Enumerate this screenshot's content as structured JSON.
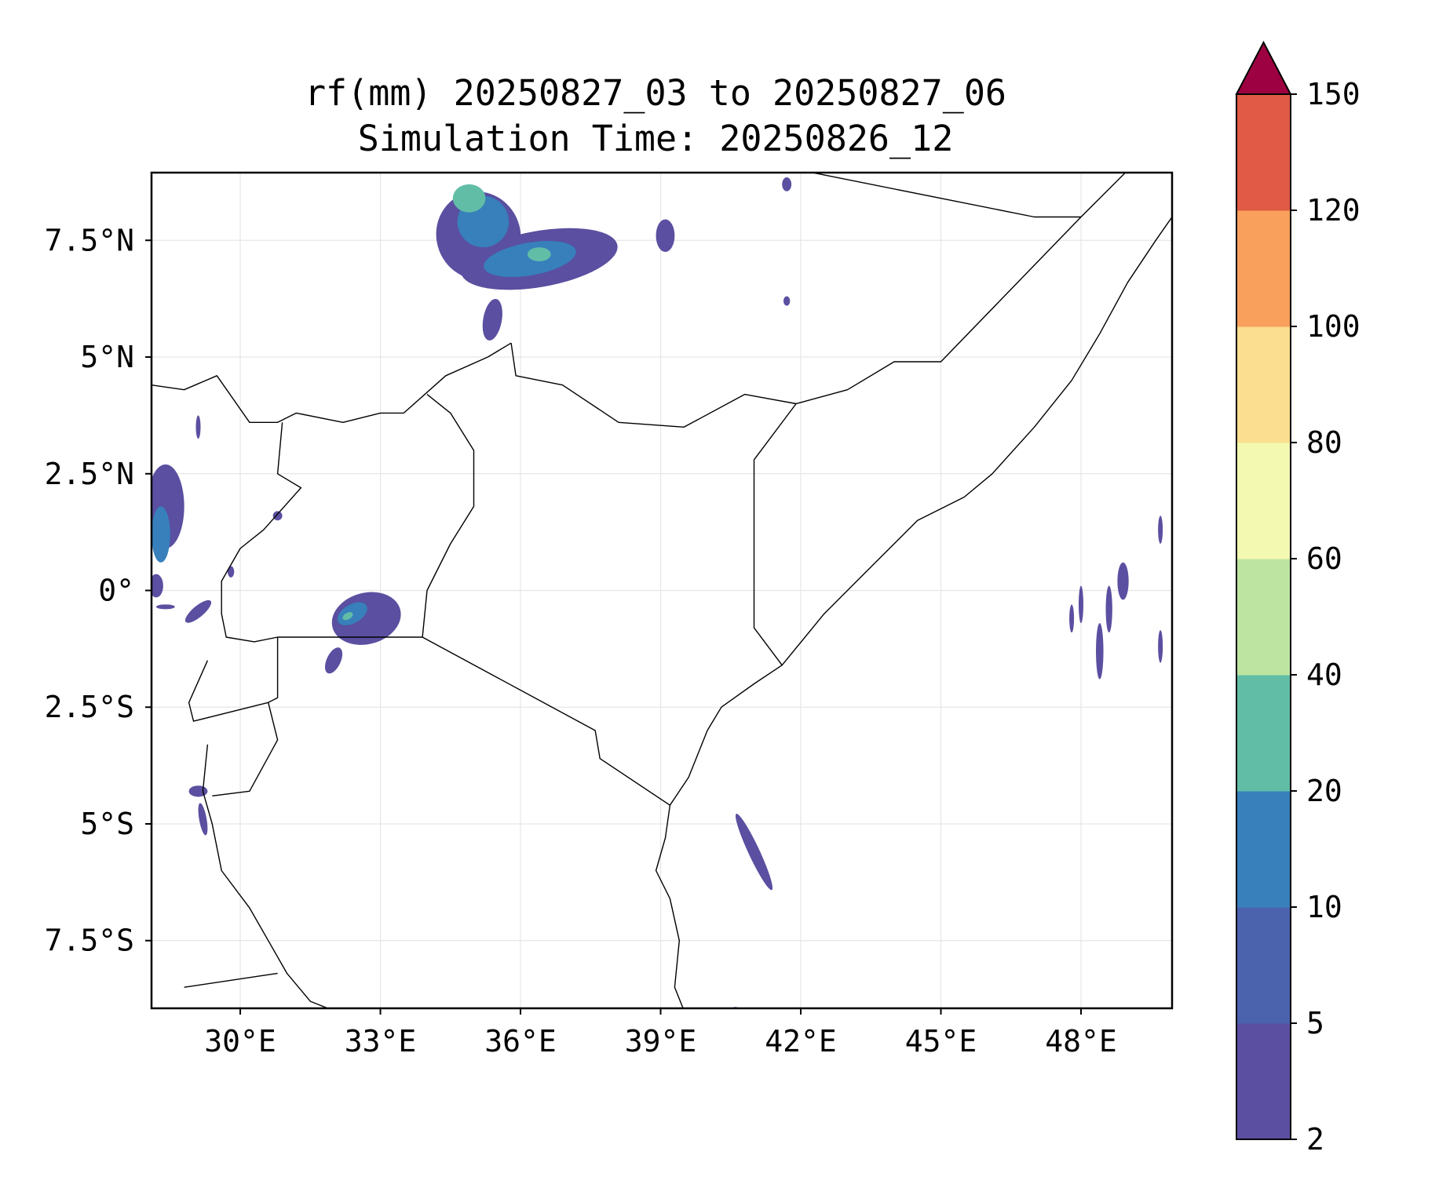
{
  "title": {
    "line1": "rf(mm) 20250827_03 to 20250827_06",
    "line2": "Simulation Time: 20250826_12"
  },
  "map": {
    "extent": {
      "lon_min": 28.1,
      "lon_max": 49.95,
      "lat_min": -8.95,
      "lat_max": 8.95
    },
    "x_ticks": [
      {
        "value": 30,
        "label": "30°E"
      },
      {
        "value": 33,
        "label": "33°E"
      },
      {
        "value": 36,
        "label": "36°E"
      },
      {
        "value": 39,
        "label": "39°E"
      },
      {
        "value": 42,
        "label": "42°E"
      },
      {
        "value": 45,
        "label": "45°E"
      },
      {
        "value": 48,
        "label": "48°E"
      }
    ],
    "y_ticks": [
      {
        "value": 7.5,
        "label": "7.5°N"
      },
      {
        "value": 5,
        "label": "5°N"
      },
      {
        "value": 2.5,
        "label": "2.5°N"
      },
      {
        "value": 0,
        "label": "0°"
      },
      {
        "value": -2.5,
        "label": "2.5°S"
      },
      {
        "value": -5,
        "label": "5°S"
      },
      {
        "value": -7.5,
        "label": "7.5°S"
      }
    ],
    "grid": true,
    "gridlines_color": "#e6e6e6",
    "rain_cells": [
      {
        "lon": 35.1,
        "lat": 7.6,
        "rx": 0.9,
        "ry": 0.95,
        "rot": -20,
        "level": 0
      },
      {
        "lon": 35.2,
        "lat": 7.9,
        "rx": 0.55,
        "ry": 0.55,
        "rot": 0,
        "level": 1
      },
      {
        "lon": 34.9,
        "lat": 8.4,
        "rx": 0.35,
        "ry": 0.3,
        "rot": 0,
        "level": 2
      },
      {
        "lon": 36.4,
        "lat": 7.1,
        "rx": 1.7,
        "ry": 0.6,
        "rot": -10,
        "level": 0
      },
      {
        "lon": 36.2,
        "lat": 7.1,
        "rx": 1.0,
        "ry": 0.35,
        "rot": -10,
        "level": 1
      },
      {
        "lon": 36.4,
        "lat": 7.2,
        "rx": 0.25,
        "ry": 0.15,
        "rot": 0,
        "level": 2
      },
      {
        "lon": 35.4,
        "lat": 5.8,
        "rx": 0.2,
        "ry": 0.45,
        "rot": 10,
        "level": 0
      },
      {
        "lon": 39.1,
        "lat": 7.6,
        "rx": 0.2,
        "ry": 0.35,
        "rot": 0,
        "level": 0
      },
      {
        "lon": 41.7,
        "lat": 8.7,
        "rx": 0.1,
        "ry": 0.15,
        "rot": 0,
        "level": 0
      },
      {
        "lon": 41.7,
        "lat": 6.2,
        "rx": 0.07,
        "ry": 0.1,
        "rot": 0,
        "level": 0
      },
      {
        "lon": 28.4,
        "lat": 1.8,
        "rx": 0.4,
        "ry": 0.9,
        "rot": 0,
        "level": 0
      },
      {
        "lon": 28.3,
        "lat": 1.2,
        "rx": 0.2,
        "ry": 0.6,
        "rot": 0,
        "level": 1
      },
      {
        "lon": 28.2,
        "lat": 0.1,
        "rx": 0.15,
        "ry": 0.25,
        "rot": 0,
        "level": 0
      },
      {
        "lon": 29.1,
        "lat": -0.45,
        "rx": 0.35,
        "ry": 0.12,
        "rot": -40,
        "level": 0
      },
      {
        "lon": 28.4,
        "lat": -0.35,
        "rx": 0.2,
        "ry": 0.05,
        "rot": 0,
        "level": 0
      },
      {
        "lon": 29.1,
        "lat": 3.5,
        "rx": 0.05,
        "ry": 0.25,
        "rot": 0,
        "level": 0
      },
      {
        "lon": 30.8,
        "lat": 1.6,
        "rx": 0.1,
        "ry": 0.1,
        "rot": 0,
        "level": 0
      },
      {
        "lon": 29.8,
        "lat": 0.4,
        "rx": 0.07,
        "ry": 0.12,
        "rot": 0,
        "level": 0
      },
      {
        "lon": 32.7,
        "lat": -0.6,
        "rx": 0.75,
        "ry": 0.55,
        "rot": -15,
        "level": 0
      },
      {
        "lon": 32.4,
        "lat": -0.5,
        "rx": 0.35,
        "ry": 0.2,
        "rot": -30,
        "level": 1
      },
      {
        "lon": 32.3,
        "lat": -0.55,
        "rx": 0.12,
        "ry": 0.07,
        "rot": -30,
        "level": 2
      },
      {
        "lon": 32.0,
        "lat": -1.5,
        "rx": 0.15,
        "ry": 0.3,
        "rot": 25,
        "level": 0
      },
      {
        "lon": 29.1,
        "lat": -4.3,
        "rx": 0.2,
        "ry": 0.12,
        "rot": 0,
        "level": 0
      },
      {
        "lon": 29.2,
        "lat": -4.9,
        "rx": 0.08,
        "ry": 0.35,
        "rot": -10,
        "level": 0
      },
      {
        "lon": 41.0,
        "lat": -5.6,
        "rx": 0.12,
        "ry": 0.9,
        "rot": -25,
        "level": 0
      },
      {
        "lon": 48.9,
        "lat": 0.2,
        "rx": 0.12,
        "ry": 0.4,
        "rot": 0,
        "level": 0
      },
      {
        "lon": 48.6,
        "lat": -0.4,
        "rx": 0.07,
        "ry": 0.5,
        "rot": 0,
        "level": 0
      },
      {
        "lon": 48.4,
        "lat": -1.3,
        "rx": 0.08,
        "ry": 0.6,
        "rot": 0,
        "level": 0
      },
      {
        "lon": 48.0,
        "lat": -0.3,
        "rx": 0.05,
        "ry": 0.4,
        "rot": 0,
        "level": 0
      },
      {
        "lon": 49.7,
        "lat": 1.3,
        "rx": 0.05,
        "ry": 0.3,
        "rot": 0,
        "level": 0
      },
      {
        "lon": 49.7,
        "lat": -1.2,
        "rx": 0.05,
        "ry": 0.35,
        "rot": 0,
        "level": 0
      },
      {
        "lon": 47.8,
        "lat": -0.6,
        "rx": 0.05,
        "ry": 0.3,
        "rot": 0,
        "level": 0
      },
      {
        "lon": 40.6,
        "lat": -9.0,
        "rx": 0.1,
        "ry": 0.08,
        "rot": 0,
        "level": 0
      }
    ],
    "borders": [
      [
        [
          28.1,
          4.4
        ],
        [
          28.8,
          4.3
        ],
        [
          29.5,
          4.6
        ],
        [
          30.2,
          3.6
        ],
        [
          30.8,
          3.6
        ],
        [
          31.2,
          3.8
        ],
        [
          32.2,
          3.6
        ],
        [
          33.0,
          3.8
        ],
        [
          33.5,
          3.8
        ],
        [
          34.4,
          4.6
        ],
        [
          35.3,
          5.0
        ],
        [
          35.8,
          5.3
        ]
      ],
      [
        [
          28.1,
          2.5
        ],
        [
          28.1,
          4.4
        ]
      ],
      [
        [
          30.9,
          3.6
        ],
        [
          30.8,
          2.5
        ],
        [
          31.3,
          2.2
        ],
        [
          30.5,
          1.3
        ],
        [
          30.0,
          0.9
        ],
        [
          29.6,
          0.2
        ],
        [
          29.6,
          -0.5
        ],
        [
          29.7,
          -1.0
        ],
        [
          30.3,
          -1.1
        ],
        [
          30.8,
          -1.0
        ],
        [
          32.0,
          -1.0
        ],
        [
          33.9,
          -1.0
        ]
      ],
      [
        [
          33.9,
          -1.0
        ],
        [
          34.0,
          0.0
        ],
        [
          34.5,
          1.0
        ],
        [
          35.0,
          1.8
        ],
        [
          35.0,
          3.0
        ],
        [
          34.5,
          3.8
        ],
        [
          34.0,
          4.2
        ]
      ],
      [
        [
          33.9,
          -1.0
        ],
        [
          37.6,
          -3.0
        ],
        [
          37.7,
          -3.6
        ],
        [
          39.2,
          -4.6
        ]
      ],
      [
        [
          35.8,
          5.3
        ],
        [
          35.9,
          4.6
        ],
        [
          36.9,
          4.4
        ],
        [
          38.1,
          3.6
        ],
        [
          39.5,
          3.5
        ],
        [
          40.8,
          4.2
        ],
        [
          41.9,
          4.0
        ],
        [
          43.0,
          4.3
        ],
        [
          44.0,
          4.9
        ],
        [
          45.0,
          4.9
        ],
        [
          48.0,
          8.0
        ],
        [
          49.0,
          9.0
        ]
      ],
      [
        [
          41.9,
          4.0
        ],
        [
          41.0,
          2.8
        ],
        [
          41.0,
          -0.8
        ],
        [
          41.6,
          -1.6
        ]
      ],
      [
        [
          42.0,
          9.0
        ],
        [
          47.0,
          8.0
        ],
        [
          48.0,
          8.0
        ]
      ],
      [
        [
          30.8,
          -1.0
        ],
        [
          30.8,
          -2.3
        ],
        [
          30.6,
          -2.4
        ],
        [
          29.0,
          -2.8
        ],
        [
          28.9,
          -2.4
        ],
        [
          29.3,
          -1.5
        ]
      ],
      [
        [
          30.6,
          -2.4
        ],
        [
          30.8,
          -3.2
        ],
        [
          30.2,
          -4.3
        ],
        [
          29.4,
          -4.4
        ]
      ],
      [
        [
          28.8,
          -8.5
        ],
        [
          30.8,
          -8.2
        ]
      ]
    ],
    "coastlines": [
      [
        [
          39.2,
          -4.6
        ],
        [
          39.6,
          -4.0
        ],
        [
          40.0,
          -3.0
        ],
        [
          40.3,
          -2.5
        ],
        [
          41.0,
          -2.0
        ],
        [
          41.6,
          -1.6
        ],
        [
          42.5,
          -0.5
        ],
        [
          43.5,
          0.5
        ],
        [
          44.5,
          1.5
        ],
        [
          45.5,
          2.0
        ],
        [
          46.1,
          2.5
        ],
        [
          47.0,
          3.5
        ],
        [
          47.8,
          4.5
        ],
        [
          48.4,
          5.5
        ],
        [
          49.0,
          6.6
        ],
        [
          49.6,
          7.5
        ],
        [
          49.95,
          8.0
        ]
      ],
      [
        [
          39.2,
          -4.6
        ],
        [
          39.1,
          -5.3
        ],
        [
          38.9,
          -6.0
        ],
        [
          39.2,
          -6.6
        ],
        [
          39.4,
          -7.5
        ],
        [
          39.3,
          -8.5
        ],
        [
          39.5,
          -9.0
        ]
      ]
    ],
    "lakes": [
      [
        [
          29.3,
          -3.3
        ],
        [
          29.2,
          -4.3
        ],
        [
          29.4,
          -5.0
        ],
        [
          29.6,
          -6.0
        ],
        [
          30.2,
          -6.8
        ],
        [
          30.6,
          -7.5
        ],
        [
          31.0,
          -8.2
        ],
        [
          31.5,
          -8.8
        ],
        [
          32.0,
          -9.0
        ]
      ]
    ]
  },
  "colorbar": {
    "levels": [
      "2",
      "5",
      "10",
      "20",
      "40",
      "60",
      "80",
      "100",
      "120",
      "150"
    ],
    "colors": [
      "#5a4fa0",
      "#4b62ad",
      "#3780bb",
      "#62bda7",
      "#bde4a0",
      "#f3f9b0",
      "#fbde8f",
      "#f8a05c",
      "#e05a45",
      "#d43d4f"
    ],
    "extend_color": "#9e0142"
  }
}
